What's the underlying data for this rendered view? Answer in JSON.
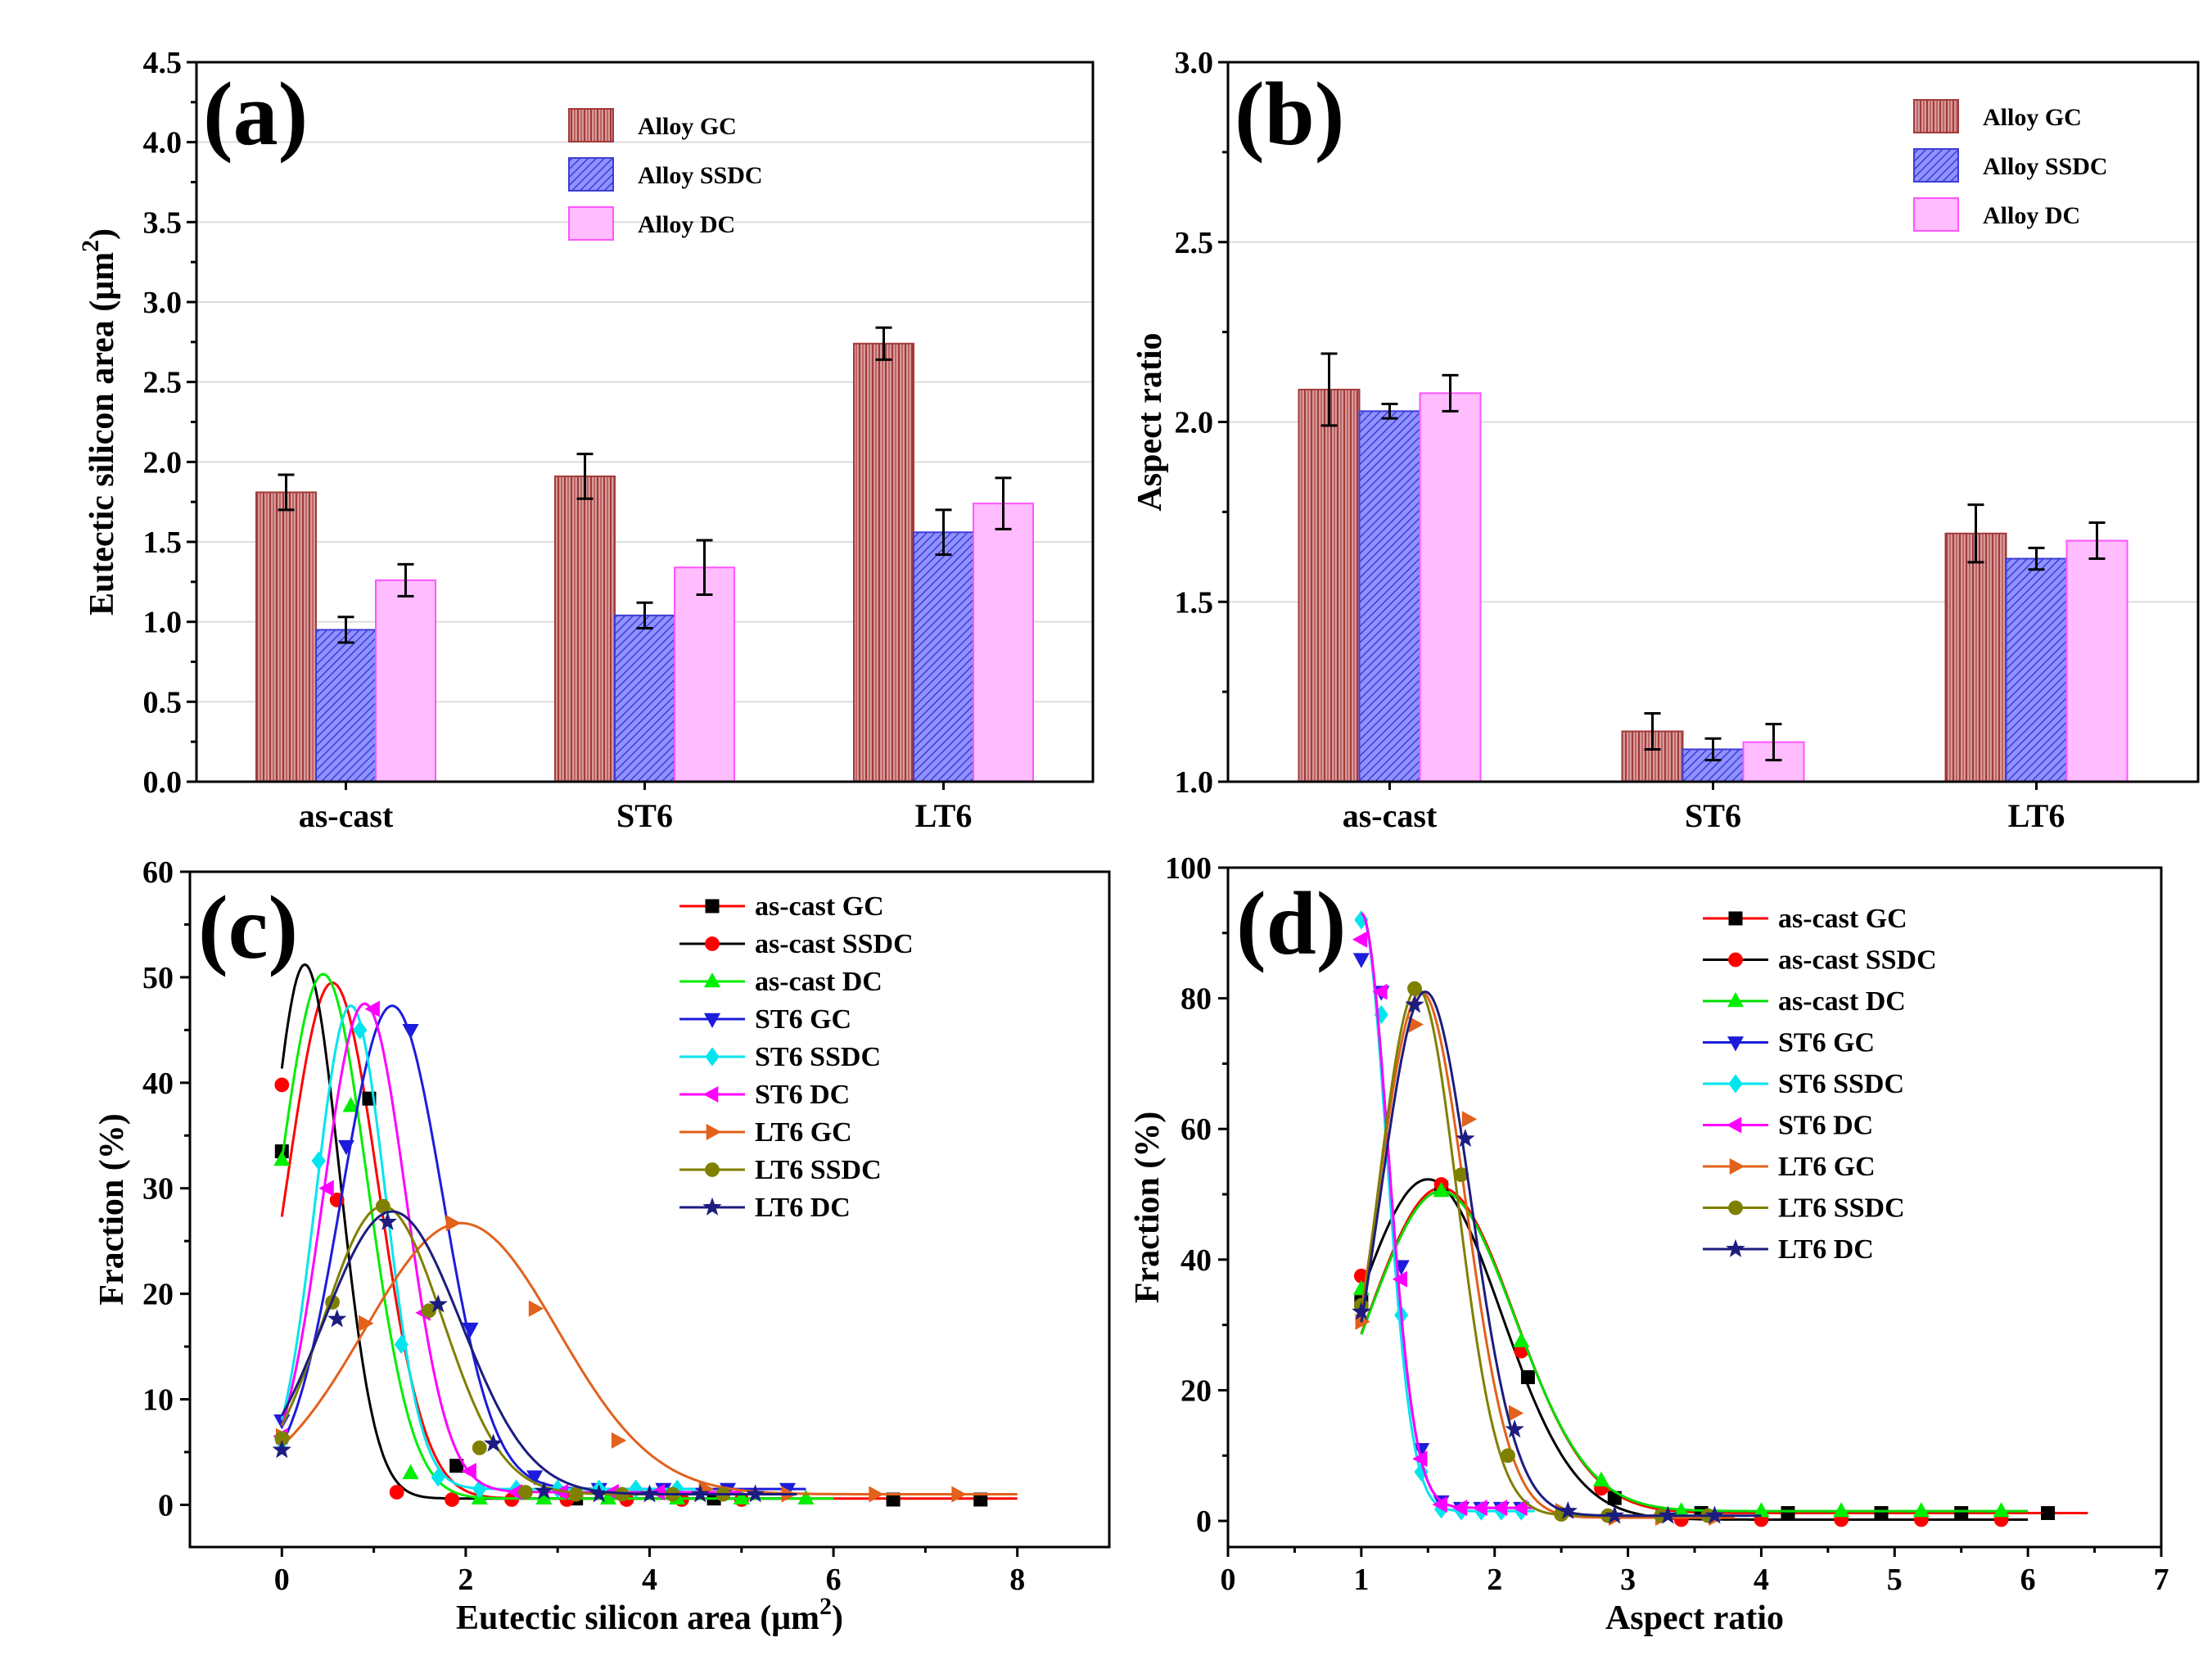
{
  "chart_data": [
    {
      "panel": "(a)",
      "type": "bar",
      "xlabel": "",
      "ylabel_main": "Eutectic silicon area (μm",
      "ylabel_sup": "2",
      "ylabel_end": ")",
      "ylim": [
        0,
        4.5
      ],
      "yticks": [
        "0.0",
        "0.5",
        "1.0",
        "1.5",
        "2.0",
        "2.5",
        "3.0",
        "3.5",
        "4.0",
        "4.5"
      ],
      "categories": [
        "as-cast",
        "ST6",
        "LT6"
      ],
      "series": [
        {
          "name": "Alloy GC",
          "values": [
            1.81,
            1.91,
            2.74
          ],
          "errors": [
            0.11,
            0.14,
            0.1
          ]
        },
        {
          "name": "Alloy SSDC",
          "values": [
            0.95,
            1.04,
            1.56
          ],
          "errors": [
            0.08,
            0.08,
            0.14
          ]
        },
        {
          "name": "Alloy DC",
          "values": [
            1.26,
            1.34,
            1.74
          ],
          "errors": [
            0.1,
            0.17,
            0.16
          ]
        }
      ],
      "legend": "top-center"
    },
    {
      "panel": "(b)",
      "type": "bar",
      "xlabel": "",
      "ylabel": "Aspect ratio",
      "ylim": [
        1.0,
        3.0
      ],
      "yticks": [
        "1.0",
        "1.5",
        "2.0",
        "2.5",
        "3.0"
      ],
      "categories": [
        "as-cast",
        "ST6",
        "LT6"
      ],
      "series": [
        {
          "name": "Alloy GC",
          "values": [
            2.09,
            1.14,
            1.69
          ],
          "errors": [
            0.1,
            0.05,
            0.08
          ]
        },
        {
          "name": "Alloy SSDC",
          "values": [
            2.03,
            1.09,
            1.62
          ],
          "errors": [
            0.02,
            0.03,
            0.03
          ]
        },
        {
          "name": "Alloy DC",
          "values": [
            2.08,
            1.11,
            1.67
          ],
          "errors": [
            0.05,
            0.05,
            0.05
          ]
        }
      ],
      "legend": "top-right"
    },
    {
      "panel": "(c)",
      "type": "line",
      "xlabel_main": "Eutectic silicon area (μm",
      "xlabel_sup": "2",
      "xlabel_end": ")",
      "ylabel": "Fraction (%)",
      "xlim": [
        -1,
        9
      ],
      "ylim": [
        -4,
        60
      ],
      "xticks": [
        "0",
        "2",
        "4",
        "6",
        "8"
      ],
      "yticks": [
        "0",
        "10",
        "20",
        "30",
        "40",
        "50",
        "60"
      ],
      "series": [
        {
          "name": "as-cast GC",
          "color": "#ff0000",
          "marker": "square",
          "markerColor": "#000000",
          "peak": 49.5,
          "center": 0.55,
          "width": 0.5,
          "base": 0.6,
          "xmax": 8.0,
          "points": [
            [
              0,
              33.5
            ],
            [
              0.95,
              38.5
            ],
            [
              1.9,
              3.7
            ],
            [
              3.2,
              0.6
            ],
            [
              4.7,
              0.6
            ],
            [
              6.65,
              0.5
            ],
            [
              7.6,
              0.5
            ]
          ]
        },
        {
          "name": "as-cast SSDC",
          "color": "#000000",
          "marker": "circle",
          "markerColor": "#ff0000",
          "peak": 51.2,
          "center": 0.25,
          "width": 0.38,
          "base": 0.6,
          "xmax": 5.5,
          "points": [
            [
              0,
              39.8
            ],
            [
              0.6,
              28.9
            ],
            [
              1.25,
              1.2
            ],
            [
              1.85,
              0.5
            ],
            [
              2.5,
              0.5
            ],
            [
              3.1,
              0.5
            ],
            [
              3.75,
              0.5
            ],
            [
              4.35,
              0.5
            ],
            [
              5.0,
              0.5
            ]
          ]
        },
        {
          "name": "as-cast DC",
          "color": "#00ee00",
          "marker": "triangle-up",
          "markerColor": "#00ee00",
          "peak": 50.3,
          "center": 0.45,
          "width": 0.48,
          "base": 0.6,
          "xmax": 6.0,
          "points": [
            [
              0,
              32.7
            ],
            [
              0.75,
              37.8
            ],
            [
              1.4,
              3.0
            ],
            [
              2.15,
              0.6
            ],
            [
              2.85,
              0.6
            ],
            [
              3.55,
              0.6
            ],
            [
              4.3,
              0.6
            ],
            [
              5.0,
              0.6
            ],
            [
              5.7,
              0.6
            ]
          ]
        },
        {
          "name": "ST6 GC",
          "color": "#1c1cdc",
          "marker": "triangle-down",
          "markerColor": "#1c1cdc",
          "peak": 47.3,
          "center": 1.2,
          "width": 0.55,
          "base": 1.5,
          "xmax": 5.7,
          "points": [
            [
              0,
              8.0
            ],
            [
              0.7,
              34.0
            ],
            [
              1.4,
              45.0
            ],
            [
              2.05,
              16.7
            ],
            [
              2.75,
              2.7
            ],
            [
              3.45,
              1.5
            ],
            [
              4.15,
              1.5
            ],
            [
              4.85,
              1.5
            ],
            [
              5.5,
              1.5
            ]
          ]
        },
        {
          "name": "ST6 SSDC",
          "color": "#00e5ee",
          "marker": "diamond",
          "markerColor": "#00e5ee",
          "peak": 47.3,
          "center": 0.75,
          "width": 0.38,
          "base": 1.5,
          "xmax": 4.5,
          "points": [
            [
              0,
              6.0
            ],
            [
              0.4,
              32.6
            ],
            [
              0.85,
              45.0
            ],
            [
              1.3,
              15.2
            ],
            [
              1.7,
              2.6
            ],
            [
              2.15,
              1.5
            ],
            [
              2.55,
              1.5
            ],
            [
              3.0,
              1.5
            ],
            [
              3.45,
              1.5
            ],
            [
              3.85,
              1.5
            ],
            [
              4.3,
              1.5
            ]
          ]
        },
        {
          "name": "ST6 DC",
          "color": "#ff00ff",
          "marker": "triangle-left",
          "markerColor": "#ff00ff",
          "peak": 47.5,
          "center": 0.9,
          "width": 0.45,
          "base": 1.2,
          "xmax": 5.0,
          "points": [
            [
              0,
              6.5
            ],
            [
              0.5,
              30.0
            ],
            [
              1.0,
              47.0
            ],
            [
              1.55,
              18.2
            ],
            [
              2.05,
              3.2
            ],
            [
              2.55,
              1.2
            ],
            [
              3.05,
              1.2
            ],
            [
              3.6,
              1.2
            ],
            [
              4.1,
              1.2
            ]
          ]
        },
        {
          "name": "LT6 GC",
          "color": "#e2611b",
          "marker": "triangle-right",
          "markerColor": "#e2611b",
          "peak": 26.7,
          "center": 1.95,
          "width": 1.05,
          "base": 1.0,
          "xmax": 8.0,
          "points": [
            [
              0,
              6.5
            ],
            [
              0.9,
              17.2
            ],
            [
              1.85,
              26.7
            ],
            [
              2.75,
              18.6
            ],
            [
              3.65,
              6.1
            ],
            [
              4.6,
              1.5
            ],
            [
              5.5,
              1.0
            ],
            [
              6.45,
              1.0
            ],
            [
              7.35,
              1.0
            ]
          ]
        },
        {
          "name": "LT6 SSDC",
          "color": "#808000",
          "marker": "circle",
          "markerColor": "#808000",
          "peak": 28.3,
          "center": 1.1,
          "width": 0.65,
          "base": 1.0,
          "xmax": 5.3,
          "points": [
            [
              0,
              6.3
            ],
            [
              0.55,
              19.2
            ],
            [
              1.1,
              28.3
            ],
            [
              1.6,
              18.4
            ],
            [
              2.15,
              5.4
            ],
            [
              2.65,
              1.2
            ],
            [
              3.2,
              1.0
            ],
            [
              3.7,
              1.0
            ],
            [
              4.25,
              1.0
            ],
            [
              4.8,
              1.0
            ]
          ]
        },
        {
          "name": "LT6 DC",
          "color": "#1c1c80",
          "marker": "star",
          "markerColor": "#1c1c80",
          "peak": 27.8,
          "center": 1.2,
          "width": 0.75,
          "base": 1.0,
          "xmax": 5.6,
          "points": [
            [
              0,
              5.2
            ],
            [
              0.6,
              17.6
            ],
            [
              1.15,
              26.8
            ],
            [
              1.7,
              19.0
            ],
            [
              2.3,
              5.8
            ],
            [
              2.85,
              1.3
            ],
            [
              3.45,
              1.0
            ],
            [
              4.0,
              1.0
            ],
            [
              4.55,
              1.0
            ],
            [
              5.15,
              1.0
            ]
          ]
        }
      ],
      "legend": "top-right"
    },
    {
      "panel": "(d)",
      "type": "line",
      "xlabel": "Aspect ratio",
      "ylabel": "Fraction (%)",
      "xlim": [
        0,
        7
      ],
      "ylim": [
        -4,
        100
      ],
      "xticks": [
        "0",
        "1",
        "2",
        "3",
        "4",
        "5",
        "6",
        "7"
      ],
      "yticks": [
        "0",
        "20",
        "40",
        "60",
        "80",
        "100"
      ],
      "series": [
        {
          "name": "as-cast GC",
          "color": "#ff0000",
          "marker": "square",
          "markerColor": "#000000",
          "peak": 51.0,
          "center": 1.6,
          "width": 0.55,
          "base": 1.2,
          "xstart": 1.0,
          "xmax": 6.45,
          "points": [
            [
              1.0,
              33.5
            ],
            [
              1.6,
              51.0
            ],
            [
              2.25,
              22.0
            ],
            [
              2.9,
              3.5
            ],
            [
              3.55,
              1.2
            ],
            [
              4.2,
              1.2
            ],
            [
              4.9,
              1.2
            ],
            [
              5.5,
              1.2
            ],
            [
              6.15,
              1.2
            ]
          ]
        },
        {
          "name": "as-cast SSDC",
          "color": "#000000",
          "marker": "circle",
          "markerColor": "#ff0000",
          "peak": 52.3,
          "center": 1.5,
          "width": 0.55,
          "base": 0.2,
          "xstart": 1.0,
          "xmax": 6.0,
          "points": [
            [
              1.0,
              37.5
            ],
            [
              1.6,
              51.5
            ],
            [
              2.2,
              26.0
            ],
            [
              2.8,
              5.0
            ],
            [
              3.4,
              0.2
            ],
            [
              4.0,
              0.2
            ],
            [
              4.6,
              0.2
            ],
            [
              5.2,
              0.2
            ],
            [
              5.8,
              0.2
            ]
          ]
        },
        {
          "name": "as-cast DC",
          "color": "#00dd00",
          "marker": "triangle-up",
          "markerColor": "#00ee00",
          "peak": 50.5,
          "center": 1.6,
          "width": 0.55,
          "base": 1.5,
          "xstart": 1.0,
          "xmax": 6.0,
          "points": [
            [
              1.0,
              35.5
            ],
            [
              1.6,
              50.5
            ],
            [
              2.2,
              27.5
            ],
            [
              2.8,
              6.2
            ],
            [
              3.4,
              1.5
            ],
            [
              4.0,
              1.5
            ],
            [
              4.6,
              1.5
            ],
            [
              5.2,
              1.5
            ],
            [
              5.8,
              1.5
            ]
          ]
        },
        {
          "name": "ST6 GC",
          "color": "#1c1cdc",
          "marker": "triangle-down",
          "markerColor": "#1c1cdc",
          "peak": 93.0,
          "center": 1.0,
          "width": 0.2,
          "base": 2.0,
          "xstart": 1.0,
          "xmax": 2.3,
          "points": [
            [
              1.0,
              86.0
            ],
            [
              1.15,
              81.0
            ],
            [
              1.3,
              39.0
            ],
            [
              1.45,
              11.0
            ],
            [
              1.6,
              3.0
            ],
            [
              1.75,
              2.0
            ],
            [
              1.9,
              2.0
            ],
            [
              2.05,
              2.0
            ],
            [
              2.2,
              2.0
            ]
          ]
        },
        {
          "name": "ST6 SSDC",
          "color": "#00e5ee",
          "marker": "diamond",
          "markerColor": "#00e5ee",
          "peak": 93.0,
          "center": 1.0,
          "width": 0.19,
          "base": 1.5,
          "xstart": 1.0,
          "xmax": 2.3,
          "points": [
            [
              1.0,
              92.0
            ],
            [
              1.15,
              77.5
            ],
            [
              1.3,
              31.5
            ],
            [
              1.45,
              7.5
            ],
            [
              1.6,
              1.8
            ],
            [
              1.75,
              1.5
            ],
            [
              1.9,
              1.5
            ],
            [
              2.05,
              1.5
            ],
            [
              2.2,
              1.5
            ]
          ]
        },
        {
          "name": "ST6 DC",
          "color": "#ff00ff",
          "marker": "triangle-left",
          "markerColor": "#ff00ff",
          "peak": 93.0,
          "center": 1.0,
          "width": 0.2,
          "base": 2.0,
          "xstart": 1.0,
          "xmax": 2.3,
          "points": [
            [
              1.0,
              89.0
            ],
            [
              1.15,
              81.0
            ],
            [
              1.3,
              37.0
            ],
            [
              1.45,
              9.5
            ],
            [
              1.6,
              2.5
            ],
            [
              1.75,
              2.0
            ],
            [
              1.9,
              2.0
            ],
            [
              2.05,
              2.0
            ],
            [
              2.2,
              2.0
            ]
          ]
        },
        {
          "name": "LT6 GC",
          "color": "#e2611b",
          "marker": "triangle-right",
          "markerColor": "#e2611b",
          "peak": 81.0,
          "center": 1.45,
          "width": 0.33,
          "base": 0.5,
          "xstart": 1.0,
          "xmax": 3.8,
          "points": [
            [
              1.0,
              30.5
            ],
            [
              1.4,
              76.0
            ],
            [
              1.8,
              61.5
            ],
            [
              2.15,
              16.5
            ],
            [
              2.5,
              1.5
            ],
            [
              2.9,
              0.5
            ],
            [
              3.25,
              0.5
            ],
            [
              3.65,
              0.5
            ]
          ]
        },
        {
          "name": "LT6 SSDC",
          "color": "#808000",
          "marker": "circle",
          "markerColor": "#808000",
          "peak": 81.5,
          "center": 1.42,
          "width": 0.3,
          "base": 0.8,
          "xstart": 1.0,
          "xmax": 3.8,
          "points": [
            [
              1.0,
              33.0
            ],
            [
              1.4,
              81.5
            ],
            [
              1.75,
              53.0
            ],
            [
              2.1,
              10.0
            ],
            [
              2.5,
              1.0
            ],
            [
              2.85,
              0.8
            ],
            [
              3.25,
              0.8
            ],
            [
              3.6,
              0.8
            ]
          ]
        },
        {
          "name": "LT6 DC",
          "color": "#1c1c80",
          "marker": "star",
          "markerColor": "#1c1c80",
          "peak": 81.0,
          "center": 1.48,
          "width": 0.34,
          "base": 0.8,
          "xstart": 1.0,
          "xmax": 4.0,
          "points": [
            [
              1.0,
              32.0
            ],
            [
              1.4,
              79.0
            ],
            [
              1.78,
              58.5
            ],
            [
              2.15,
              14.0
            ],
            [
              2.55,
              1.5
            ],
            [
              2.9,
              0.8
            ],
            [
              3.3,
              0.8
            ],
            [
              3.65,
              0.8
            ]
          ]
        }
      ],
      "legend": "top-right"
    }
  ]
}
